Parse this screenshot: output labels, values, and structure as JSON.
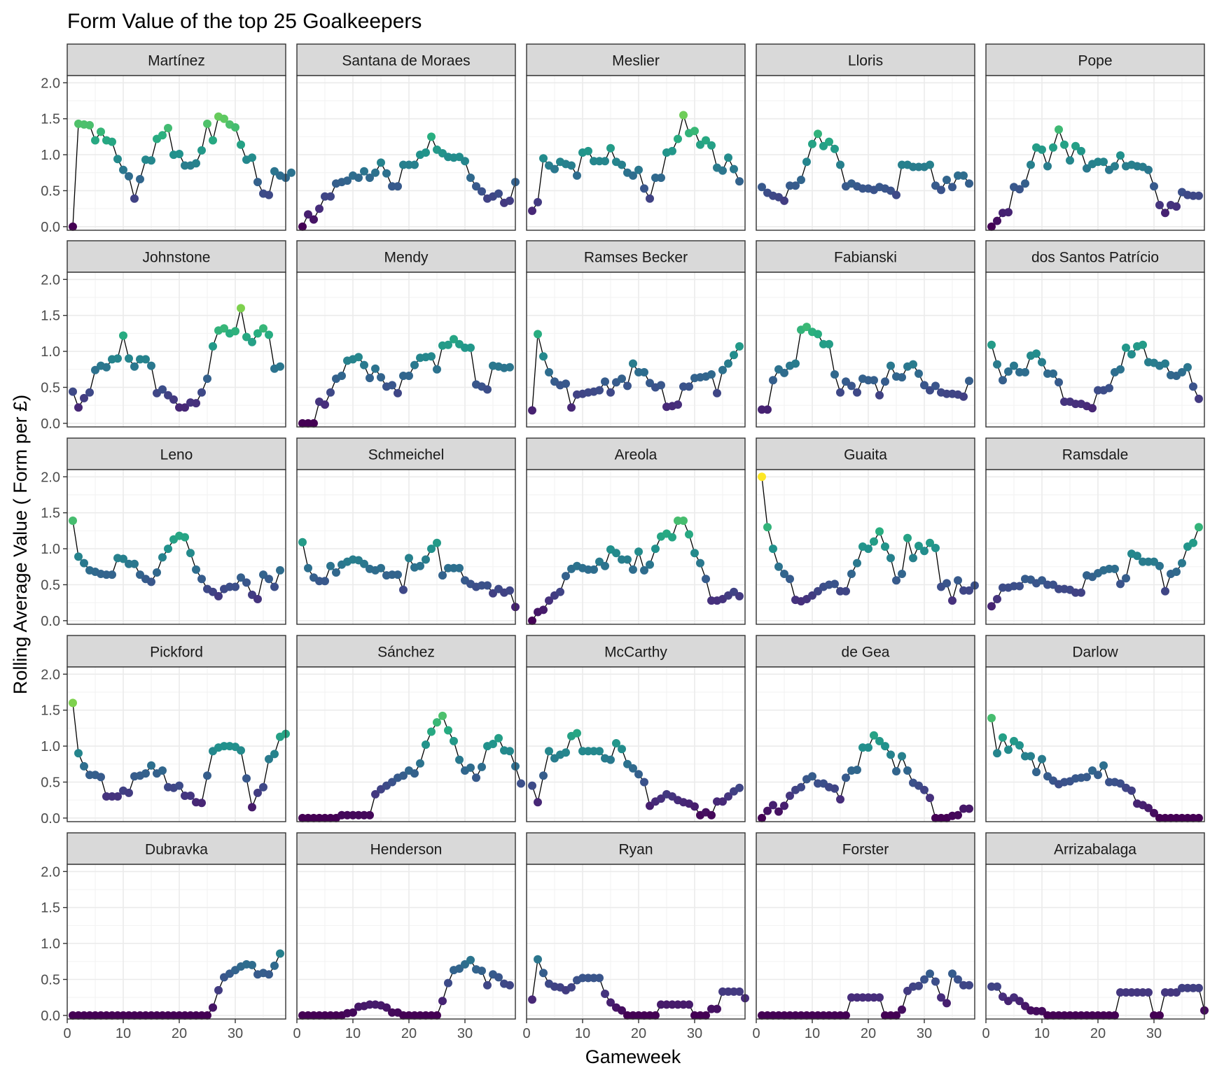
{
  "chart_data": {
    "type": "scatter",
    "title": "Form Value of the top 25 Goalkeepers",
    "xlabel": "Gameweek",
    "ylabel": "Rolling Average Value ( Form per £)",
    "xlim": [
      0,
      39
    ],
    "ylim": [
      -0.05,
      2.1
    ],
    "x_ticks": [
      0,
      10,
      20,
      30
    ],
    "x_tick_labels": [
      "0",
      "10",
      "20",
      "30"
    ],
    "y_ticks": [
      0,
      0.5,
      1.0,
      1.5,
      2.0
    ],
    "y_tick_labels": [
      "0.0",
      "0.5",
      "1.0",
      "1.5",
      "2.0"
    ],
    "grid": true,
    "legend": "none",
    "color_scale": "viridis",
    "color_range": [
      0,
      2
    ],
    "line_color": "#000000",
    "x_start": 1,
    "x_step": 1,
    "panels": [
      {
        "name": "Martínez",
        "values": [
          0.0,
          1.43,
          1.42,
          1.41,
          1.2,
          1.32,
          1.2,
          1.18,
          0.94,
          0.79,
          0.7,
          0.39,
          0.66,
          0.93,
          0.92,
          1.22,
          1.27,
          1.37,
          1.0,
          1.01,
          0.85,
          0.85,
          0.88,
          1.06,
          1.43,
          1.2,
          1.53,
          1.5,
          1.42,
          1.38,
          1.14,
          0.93,
          0.96,
          0.62,
          0.46,
          0.44,
          0.77,
          0.71,
          0.68,
          0.75
        ]
      },
      {
        "name": "Santana de Moraes",
        "values": [
          0.0,
          0.17,
          0.1,
          0.25,
          0.42,
          0.42,
          0.6,
          0.62,
          0.64,
          0.71,
          0.68,
          0.77,
          0.68,
          0.75,
          0.89,
          0.74,
          0.56,
          0.56,
          0.86,
          0.86,
          0.86,
          1.0,
          1.03,
          1.25,
          1.07,
          1.02,
          0.97,
          0.96,
          0.97,
          0.91,
          0.68,
          0.56,
          0.49,
          0.39,
          0.42,
          0.46,
          0.33,
          0.36,
          0.62
        ]
      },
      {
        "name": "Meslier",
        "values": [
          0.22,
          0.34,
          0.95,
          0.85,
          0.8,
          0.9,
          0.87,
          0.85,
          0.71,
          1.03,
          1.05,
          0.91,
          0.91,
          0.91,
          1.09,
          0.9,
          0.86,
          0.75,
          0.71,
          0.79,
          0.53,
          0.39,
          0.68,
          0.68,
          1.03,
          1.05,
          1.22,
          1.55,
          1.3,
          1.33,
          1.14,
          1.2,
          1.13,
          0.82,
          0.78,
          0.96,
          0.8,
          0.63
        ]
      },
      {
        "name": "Lloris",
        "values": [
          0.55,
          0.47,
          0.43,
          0.41,
          0.36,
          0.57,
          0.57,
          0.65,
          0.9,
          1.15,
          1.29,
          1.12,
          1.18,
          1.08,
          0.86,
          0.56,
          0.6,
          0.56,
          0.53,
          0.53,
          0.51,
          0.55,
          0.53,
          0.5,
          0.44,
          0.86,
          0.86,
          0.83,
          0.83,
          0.83,
          0.86,
          0.57,
          0.51,
          0.65,
          0.55,
          0.71,
          0.71,
          0.6
        ]
      },
      {
        "name": "Pope",
        "values": [
          0.0,
          0.08,
          0.19,
          0.2,
          0.55,
          0.52,
          0.6,
          0.86,
          1.1,
          1.07,
          0.84,
          1.1,
          1.35,
          1.14,
          0.92,
          1.12,
          1.05,
          0.81,
          0.87,
          0.9,
          0.9,
          0.79,
          0.84,
          0.99,
          0.84,
          0.86,
          0.84,
          0.83,
          0.79,
          0.56,
          0.3,
          0.19,
          0.3,
          0.28,
          0.48,
          0.44,
          0.43,
          0.43
        ]
      },
      {
        "name": "Johnstone",
        "values": [
          0.44,
          0.22,
          0.35,
          0.43,
          0.74,
          0.8,
          0.78,
          0.89,
          0.9,
          1.22,
          0.9,
          0.79,
          0.89,
          0.89,
          0.8,
          0.42,
          0.47,
          0.39,
          0.33,
          0.22,
          0.22,
          0.29,
          0.28,
          0.43,
          0.62,
          1.07,
          1.29,
          1.32,
          1.25,
          1.28,
          1.6,
          1.2,
          1.13,
          1.25,
          1.32,
          1.23,
          0.76,
          0.79
        ]
      },
      {
        "name": "Mendy",
        "values": [
          0.0,
          0.0,
          0.0,
          0.3,
          0.26,
          0.43,
          0.62,
          0.66,
          0.87,
          0.89,
          0.92,
          0.81,
          0.63,
          0.76,
          0.64,
          0.51,
          0.53,
          0.42,
          0.66,
          0.66,
          0.81,
          0.91,
          0.92,
          0.93,
          0.75,
          1.08,
          1.09,
          1.17,
          1.1,
          1.05,
          1.05,
          0.54,
          0.51,
          0.47,
          0.8,
          0.79,
          0.77,
          0.78
        ]
      },
      {
        "name": "Ramses Becker",
        "values": [
          0.18,
          1.24,
          0.93,
          0.71,
          0.58,
          0.53,
          0.55,
          0.22,
          0.4,
          0.41,
          0.43,
          0.44,
          0.46,
          0.58,
          0.43,
          0.57,
          0.62,
          0.52,
          0.83,
          0.71,
          0.71,
          0.56,
          0.5,
          0.53,
          0.23,
          0.24,
          0.26,
          0.51,
          0.51,
          0.63,
          0.64,
          0.65,
          0.68,
          0.42,
          0.74,
          0.83,
          0.95,
          1.07
        ]
      },
      {
        "name": "Fabianski",
        "values": [
          0.19,
          0.19,
          0.6,
          0.75,
          0.7,
          0.8,
          0.83,
          1.3,
          1.34,
          1.27,
          1.24,
          1.1,
          1.1,
          0.68,
          0.43,
          0.58,
          0.52,
          0.43,
          0.62,
          0.6,
          0.6,
          0.39,
          0.58,
          0.8,
          0.65,
          0.64,
          0.79,
          0.82,
          0.69,
          0.53,
          0.46,
          0.52,
          0.43,
          0.41,
          0.41,
          0.4,
          0.37,
          0.59
        ]
      },
      {
        "name": "dos Santos Patrício",
        "values": [
          1.09,
          0.82,
          0.6,
          0.72,
          0.8,
          0.71,
          0.71,
          0.94,
          0.97,
          0.85,
          0.69,
          0.69,
          0.57,
          0.3,
          0.3,
          0.27,
          0.27,
          0.24,
          0.21,
          0.46,
          0.46,
          0.49,
          0.71,
          0.75,
          1.05,
          0.96,
          1.07,
          1.09,
          0.85,
          0.84,
          0.8,
          0.83,
          0.67,
          0.66,
          0.71,
          0.78,
          0.51,
          0.34
        ]
      },
      {
        "name": "Leno",
        "values": [
          1.39,
          0.89,
          0.8,
          0.7,
          0.68,
          0.65,
          0.64,
          0.64,
          0.87,
          0.86,
          0.79,
          0.79,
          0.64,
          0.58,
          0.54,
          0.67,
          0.88,
          1.0,
          1.13,
          1.18,
          1.16,
          0.94,
          0.71,
          0.58,
          0.44,
          0.4,
          0.34,
          0.44,
          0.47,
          0.47,
          0.6,
          0.53,
          0.36,
          0.3,
          0.64,
          0.58,
          0.47,
          0.7
        ]
      },
      {
        "name": "Schmeichel",
        "values": [
          1.09,
          0.73,
          0.6,
          0.55,
          0.55,
          0.76,
          0.67,
          0.78,
          0.82,
          0.85,
          0.84,
          0.79,
          0.72,
          0.7,
          0.73,
          0.63,
          0.64,
          0.64,
          0.43,
          0.87,
          0.74,
          0.76,
          0.85,
          1.0,
          1.08,
          0.63,
          0.73,
          0.73,
          0.73,
          0.56,
          0.51,
          0.47,
          0.49,
          0.49,
          0.38,
          0.44,
          0.39,
          0.42,
          0.19
        ]
      },
      {
        "name": "Areola",
        "values": [
          0.0,
          0.12,
          0.15,
          0.28,
          0.35,
          0.4,
          0.62,
          0.72,
          0.76,
          0.73,
          0.71,
          0.71,
          0.82,
          0.76,
          0.99,
          0.94,
          0.85,
          0.85,
          0.71,
          0.96,
          0.7,
          0.78,
          1.0,
          1.17,
          1.21,
          1.16,
          1.39,
          1.39,
          1.2,
          0.94,
          0.8,
          0.58,
          0.28,
          0.28,
          0.3,
          0.35,
          0.4,
          0.34
        ]
      },
      {
        "name": "Guaita",
        "values": [
          2.0,
          1.3,
          1.0,
          0.75,
          0.65,
          0.58,
          0.29,
          0.27,
          0.3,
          0.35,
          0.41,
          0.47,
          0.5,
          0.51,
          0.41,
          0.41,
          0.65,
          0.8,
          1.03,
          1.0,
          1.1,
          1.24,
          1.03,
          0.87,
          0.56,
          0.65,
          1.15,
          0.87,
          1.04,
          0.97,
          1.08,
          1.01,
          0.47,
          0.52,
          0.28,
          0.56,
          0.42,
          0.42,
          0.49
        ]
      },
      {
        "name": "Ramsdale",
        "values": [
          0.2,
          0.3,
          0.46,
          0.46,
          0.48,
          0.48,
          0.58,
          0.57,
          0.52,
          0.56,
          0.5,
          0.5,
          0.44,
          0.44,
          0.43,
          0.39,
          0.39,
          0.63,
          0.61,
          0.66,
          0.7,
          0.72,
          0.72,
          0.51,
          0.59,
          0.93,
          0.9,
          0.82,
          0.82,
          0.82,
          0.76,
          0.41,
          0.65,
          0.68,
          0.8,
          1.03,
          1.08,
          1.3
        ]
      },
      {
        "name": "Pickford",
        "values": [
          1.6,
          0.9,
          0.72,
          0.6,
          0.6,
          0.57,
          0.3,
          0.3,
          0.3,
          0.38,
          0.35,
          0.58,
          0.59,
          0.62,
          0.73,
          0.62,
          0.66,
          0.43,
          0.42,
          0.45,
          0.31,
          0.31,
          0.22,
          0.21,
          0.59,
          0.93,
          0.98,
          1.0,
          1.0,
          0.99,
          0.94,
          0.55,
          0.15,
          0.35,
          0.43,
          0.82,
          0.89,
          1.13,
          1.17
        ]
      },
      {
        "name": "Sánchez",
        "values": [
          0.0,
          0.0,
          0.0,
          0.0,
          0.0,
          0.0,
          0.0,
          0.04,
          0.04,
          0.04,
          0.04,
          0.04,
          0.04,
          0.33,
          0.4,
          0.45,
          0.5,
          0.56,
          0.59,
          0.66,
          0.62,
          0.76,
          1.02,
          1.2,
          1.33,
          1.42,
          1.22,
          1.07,
          0.81,
          0.66,
          0.7,
          0.56,
          0.71,
          1.0,
          1.03,
          1.11,
          0.94,
          0.93,
          0.72,
          0.48
        ]
      },
      {
        "name": "McCarthy",
        "values": [
          0.45,
          0.22,
          0.59,
          0.93,
          0.83,
          0.88,
          0.91,
          1.14,
          1.18,
          0.93,
          0.93,
          0.93,
          0.93,
          0.83,
          0.81,
          1.04,
          0.96,
          0.75,
          0.69,
          0.61,
          0.5,
          0.17,
          0.23,
          0.27,
          0.33,
          0.3,
          0.25,
          0.22,
          0.2,
          0.16,
          0.04,
          0.08,
          0.04,
          0.23,
          0.23,
          0.3,
          0.37,
          0.42
        ]
      },
      {
        "name": "de Gea",
        "values": [
          0.0,
          0.1,
          0.18,
          0.09,
          0.17,
          0.31,
          0.39,
          0.43,
          0.54,
          0.58,
          0.48,
          0.48,
          0.43,
          0.41,
          0.26,
          0.56,
          0.66,
          0.67,
          0.98,
          0.98,
          1.15,
          1.07,
          1.0,
          0.88,
          0.65,
          0.86,
          0.66,
          0.49,
          0.45,
          0.39,
          0.28,
          0.0,
          0.0,
          0.0,
          0.03,
          0.04,
          0.13,
          0.13
        ]
      },
      {
        "name": "Darlow",
        "values": [
          1.39,
          0.9,
          1.12,
          0.95,
          1.07,
          1.01,
          0.86,
          0.86,
          0.64,
          0.82,
          0.58,
          0.52,
          0.47,
          0.5,
          0.51,
          0.55,
          0.56,
          0.57,
          0.66,
          0.6,
          0.73,
          0.5,
          0.5,
          0.48,
          0.42,
          0.38,
          0.2,
          0.18,
          0.14,
          0.07,
          0.0,
          0.0,
          0.0,
          0.0,
          0.0,
          0.0,
          0.0,
          0.0
        ]
      },
      {
        "name": "Dubravka",
        "values": [
          0.0,
          0.0,
          0.0,
          0.0,
          0.0,
          0.0,
          0.0,
          0.0,
          0.0,
          0.0,
          0.0,
          0.0,
          0.0,
          0.0,
          0.0,
          0.0,
          0.0,
          0.0,
          0.0,
          0.0,
          0.0,
          0.0,
          0.0,
          0.0,
          0.0,
          0.11,
          0.35,
          0.53,
          0.58,
          0.63,
          0.68,
          0.71,
          0.7,
          0.57,
          0.59,
          0.57,
          0.69,
          0.86
        ]
      },
      {
        "name": "Henderson",
        "values": [
          0.0,
          0.0,
          0.0,
          0.0,
          0.0,
          0.0,
          0.0,
          0.0,
          0.03,
          0.04,
          0.12,
          0.13,
          0.15,
          0.15,
          0.14,
          0.11,
          0.04,
          0.04,
          0.0,
          0.0,
          0.0,
          0.0,
          0.0,
          0.0,
          0.0,
          0.2,
          0.45,
          0.63,
          0.65,
          0.71,
          0.77,
          0.64,
          0.62,
          0.42,
          0.57,
          0.53,
          0.44,
          0.42
        ]
      },
      {
        "name": "Ryan",
        "values": [
          0.22,
          0.78,
          0.59,
          0.44,
          0.4,
          0.39,
          0.35,
          0.39,
          0.49,
          0.52,
          0.52,
          0.52,
          0.52,
          0.3,
          0.18,
          0.11,
          0.07,
          0.0,
          0.0,
          0.0,
          0.0,
          0.0,
          0.0,
          0.15,
          0.15,
          0.15,
          0.15,
          0.15,
          0.15,
          0.0,
          0.0,
          0.0,
          0.09,
          0.09,
          0.33,
          0.33,
          0.33,
          0.33,
          0.24
        ]
      },
      {
        "name": "Forster",
        "values": [
          0.0,
          0.0,
          0.0,
          0.0,
          0.0,
          0.0,
          0.0,
          0.0,
          0.0,
          0.0,
          0.0,
          0.0,
          0.0,
          0.0,
          0.0,
          0.0,
          0.25,
          0.25,
          0.25,
          0.25,
          0.25,
          0.25,
          0.0,
          0.0,
          0.0,
          0.08,
          0.34,
          0.4,
          0.41,
          0.5,
          0.58,
          0.47,
          0.25,
          0.17,
          0.58,
          0.5,
          0.42,
          0.42
        ]
      },
      {
        "name": "Arrizabalaga",
        "values": [
          0.4,
          0.4,
          0.26,
          0.2,
          0.25,
          0.2,
          0.13,
          0.07,
          0.06,
          0.06,
          0.0,
          0.0,
          0.0,
          0.0,
          0.0,
          0.0,
          0.0,
          0.0,
          0.0,
          0.0,
          0.0,
          0.0,
          0.0,
          0.32,
          0.32,
          0.32,
          0.32,
          0.32,
          0.32,
          0.0,
          0.0,
          0.32,
          0.32,
          0.32,
          0.38,
          0.38,
          0.38,
          0.38,
          0.07
        ]
      }
    ]
  }
}
